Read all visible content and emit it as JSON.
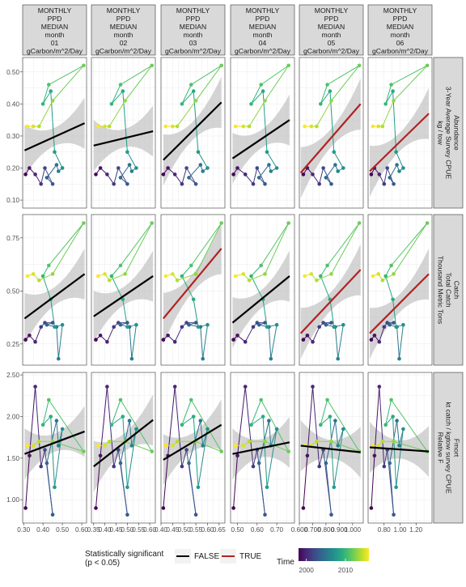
{
  "chart_data": {
    "type": "faceted-scatter-line",
    "facet_columns": [
      {
        "lines": [
          "MONTHLY",
          "PPD",
          "MEDIAN",
          "month",
          "01",
          "gCarbon/m^2/Day"
        ],
        "x_ticks": [
          "0.30",
          "0.40",
          "0.50",
          "0.60"
        ],
        "xlim": [
          0.295,
          0.625
        ],
        "x_tick_values": [
          0.3,
          0.4,
          0.5,
          0.6
        ]
      },
      {
        "lines": [
          "MONTHLY",
          "PPD",
          "MEDIAN",
          "month",
          "02",
          "gCarbon/m^2/Day"
        ],
        "x_ticks": [
          "0.35",
          "0.40",
          "0.45",
          "0.50",
          "0.55",
          "0.60"
        ],
        "xlim": [
          0.34,
          0.625
        ],
        "x_tick_values": [
          0.35,
          0.4,
          0.45,
          0.5,
          0.55,
          0.6
        ]
      },
      {
        "lines": [
          "MONTHLY",
          "PPD",
          "MEDIAN",
          "month",
          "03",
          "gCarbon/m^2/Day"
        ],
        "x_ticks": [
          "0.40",
          "0.45",
          "0.50",
          "0.55",
          "0.60",
          "0.65"
        ],
        "xlim": [
          0.4,
          0.675
        ],
        "x_tick_values": [
          0.4,
          0.45,
          0.5,
          0.55,
          0.6,
          0.65
        ]
      },
      {
        "lines": [
          "MONTHLY",
          "PPD",
          "MEDIAN",
          "month",
          "04",
          "gCarbon/m^2/Day"
        ],
        "x_ticks": [
          "0.50",
          "0.60",
          "0.70"
        ],
        "xlim": [
          0.465,
          0.79
        ],
        "x_tick_values": [
          0.5,
          0.6,
          0.7
        ]
      },
      {
        "lines": [
          "MONTHLY",
          "PPD",
          "MEDIAN",
          "month",
          "05",
          "gCarbon/m^2/Day"
        ],
        "x_ticks": [
          "0.600",
          "0.700",
          "0.800",
          "0.900",
          "1.000"
        ],
        "xlim": [
          0.6,
          1.08
        ],
        "x_tick_values": [
          0.6,
          0.7,
          0.8,
          0.9,
          1.0
        ]
      },
      {
        "lines": [
          "MONTHLY",
          "PPD",
          "MEDIAN",
          "month",
          "06",
          "gCarbon/m^2/Day"
        ],
        "x_ticks": [
          "0.80",
          "1.00",
          "1.20"
        ],
        "xlim": [
          0.6,
          1.4
        ],
        "x_tick_values": [
          0.8,
          1.0,
          1.2
        ]
      }
    ],
    "facet_rows": [
      {
        "lines": [
          "Abundance",
          "3-Year Average Survey CPUE",
          "kg / tow"
        ],
        "y_ticks": [
          "0.10",
          "0.20",
          "0.30",
          "0.40",
          "0.50"
        ],
        "y_tick_values": [
          0.1,
          0.2,
          0.3,
          0.4,
          0.5
        ],
        "ylim": [
          0.075,
          0.545
        ]
      },
      {
        "lines": [
          "Catch",
          "Total Catch",
          "Thousand Metric Tons"
        ],
        "y_ticks": [
          "0.25",
          "0.50",
          "0.75"
        ],
        "y_tick_values": [
          0.25,
          0.5,
          0.75
        ],
        "ylim": [
          0.15,
          0.86
        ]
      },
      {
        "lines": [
          "Fmort",
          "kt catch / kgtow survey CPUE",
          "Relative F"
        ],
        "y_ticks": [
          "1.00",
          "1.50",
          "2.00",
          "2.50"
        ],
        "y_tick_values": [
          1.0,
          1.5,
          2.0,
          2.5
        ],
        "ylim": [
          0.72,
          2.53
        ]
      }
    ],
    "series_years": [
      1998,
      1999,
      2000,
      2001,
      2002,
      2003,
      2004,
      2005,
      2006,
      2007,
      2008,
      2009,
      2010,
      2011,
      2012,
      2013,
      2014,
      2015,
      2016
    ],
    "x_values": [
      [
        0.31,
        0.33,
        0.36,
        0.39,
        0.41,
        0.45,
        0.42,
        0.47,
        0.48,
        0.5,
        0.46,
        0.44,
        0.4,
        0.43,
        0.61,
        0.45,
        0.38,
        0.35,
        0.32
      ],
      [
        0.36,
        0.38,
        0.41,
        0.44,
        0.46,
        0.5,
        0.47,
        0.51,
        0.52,
        0.54,
        0.5,
        0.48,
        0.43,
        0.47,
        0.61,
        0.49,
        0.42,
        0.4,
        0.37
      ],
      [
        0.41,
        0.43,
        0.46,
        0.49,
        0.51,
        0.55,
        0.52,
        0.57,
        0.58,
        0.6,
        0.56,
        0.54,
        0.49,
        0.53,
        0.66,
        0.55,
        0.47,
        0.45,
        0.42
      ],
      [
        0.48,
        0.5,
        0.54,
        0.58,
        0.6,
        0.64,
        0.61,
        0.66,
        0.67,
        0.7,
        0.65,
        0.63,
        0.57,
        0.62,
        0.76,
        0.64,
        0.56,
        0.53,
        0.49
      ],
      [
        0.63,
        0.66,
        0.7,
        0.75,
        0.78,
        0.84,
        0.8,
        0.87,
        0.89,
        0.93,
        0.86,
        0.83,
        0.76,
        0.81,
        1.05,
        0.84,
        0.73,
        0.69,
        0.64
      ],
      [
        0.64,
        0.68,
        0.74,
        0.8,
        0.84,
        0.92,
        0.87,
        0.96,
        0.99,
        1.04,
        0.95,
        0.91,
        0.82,
        0.89,
        1.34,
        0.92,
        0.78,
        0.73,
        0.66
      ]
    ],
    "y_rows": [
      [
        0.18,
        0.2,
        0.18,
        0.15,
        0.2,
        0.15,
        0.17,
        0.21,
        0.19,
        0.2,
        0.25,
        0.44,
        0.4,
        0.46,
        0.52,
        0.41,
        0.33,
        0.33,
        0.33
      ],
      [
        0.27,
        0.29,
        0.26,
        0.33,
        0.35,
        0.35,
        0.34,
        0.33,
        0.18,
        0.34,
        0.33,
        0.46,
        0.57,
        0.62,
        0.82,
        0.58,
        0.55,
        0.58,
        0.57
      ],
      [
        0.9,
        1.53,
        2.36,
        1.4,
        1.6,
        0.82,
        1.44,
        1.95,
        1.65,
        1.85,
        1.15,
        2.0,
        1.9,
        2.2,
        1.58,
        1.7,
        1.7,
        1.65,
        1.65
      ]
    ],
    "fits": [
      [
        {
          "x": [
            0.305,
            0.615
          ],
          "y": [
            0.255,
            0.34
          ],
          "significant": false
        },
        {
          "x": [
            0.35,
            0.615
          ],
          "y": [
            0.27,
            0.315
          ],
          "significant": false
        },
        {
          "x": [
            0.41,
            0.66
          ],
          "y": [
            0.225,
            0.405
          ],
          "significant": false
        },
        {
          "x": [
            0.475,
            0.765
          ],
          "y": [
            0.23,
            0.35
          ],
          "significant": false
        },
        {
          "x": [
            0.61,
            1.06
          ],
          "y": [
            0.185,
            0.4
          ],
          "significant": true
        },
        {
          "x": [
            0.62,
            1.36
          ],
          "y": [
            0.19,
            0.37
          ],
          "significant": true
        }
      ],
      [
        {
          "x": [
            0.305,
            0.615
          ],
          "y": [
            0.37,
            0.58
          ],
          "significant": false
        },
        {
          "x": [
            0.35,
            0.615
          ],
          "y": [
            0.38,
            0.57
          ],
          "significant": false
        },
        {
          "x": [
            0.41,
            0.66
          ],
          "y": [
            0.37,
            0.7
          ],
          "significant": true
        },
        {
          "x": [
            0.475,
            0.765
          ],
          "y": [
            0.35,
            0.57
          ],
          "significant": false
        },
        {
          "x": [
            0.61,
            1.06
          ],
          "y": [
            0.3,
            0.6
          ],
          "significant": true
        },
        {
          "x": [
            0.62,
            1.36
          ],
          "y": [
            0.3,
            0.58
          ],
          "significant": true
        }
      ],
      [
        {
          "x": [
            0.305,
            0.615
          ],
          "y": [
            1.55,
            1.82
          ],
          "significant": false
        },
        {
          "x": [
            0.35,
            0.615
          ],
          "y": [
            1.4,
            1.96
          ],
          "significant": false
        },
        {
          "x": [
            0.41,
            0.66
          ],
          "y": [
            1.48,
            1.9
          ],
          "significant": false
        },
        {
          "x": [
            0.475,
            0.765
          ],
          "y": [
            1.55,
            1.69
          ],
          "significant": false
        },
        {
          "x": [
            0.61,
            1.06
          ],
          "y": [
            1.65,
            1.57
          ],
          "significant": false
        },
        {
          "x": [
            0.62,
            1.36
          ],
          "y": [
            1.63,
            1.58
          ],
          "significant": false
        }
      ]
    ],
    "legend": {
      "significance_title": "Statistically significant\n(p < 0.05)",
      "entries": [
        {
          "label": "FALSE",
          "color": "#000000"
        },
        {
          "label": "TRUE",
          "color": "#b22222"
        }
      ],
      "time_title": "Time",
      "time_ticks": [
        "2000",
        "2010"
      ],
      "time_range": [
        1998,
        2016
      ],
      "time_tick_values": [
        2000,
        2010
      ]
    }
  },
  "colors": {
    "strip": "#d9d9d9",
    "panel_border": "#333333",
    "grid": "#ebebeb",
    "ribbon": "#bdbdbd",
    "not_significant": "#000000",
    "significant": "#b22222"
  }
}
